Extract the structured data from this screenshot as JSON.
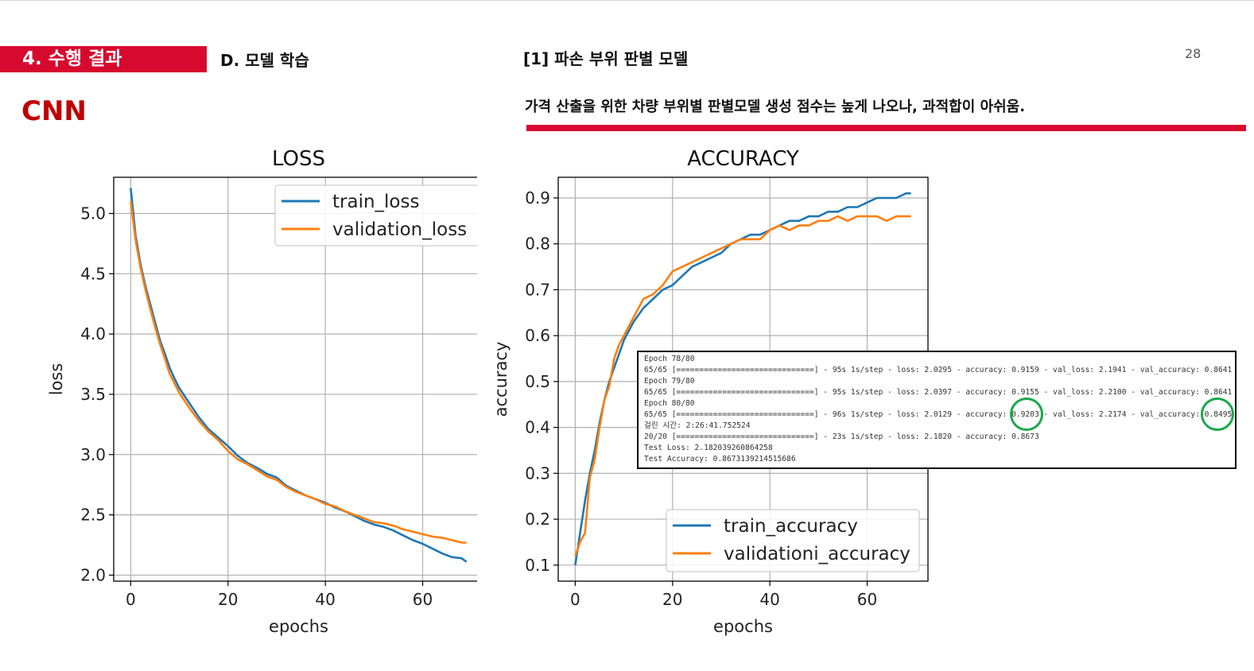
{
  "header": {
    "section": "4. 수행 결과",
    "subsection": "D. 모델 학습",
    "model_title": "[1] 파손 부위 판별 모델",
    "page_number": "28",
    "model_type": "CNN",
    "note": "가격 산출을 위한 차량 부위별 판별모델 생성 점수는 높게 나오나, 과적합이 아쉬움."
  },
  "chart_data": [
    {
      "type": "line",
      "title": "LOSS",
      "xlabel": "epochs",
      "ylabel": "loss",
      "xlim": [
        -3.5,
        72.5
      ],
      "ylim": [
        1.95,
        5.3
      ],
      "xticks": [
        0,
        20,
        40,
        60
      ],
      "yticks": [
        2.0,
        2.5,
        3.0,
        3.5,
        4.0,
        4.5,
        5.0
      ],
      "grid": true,
      "legend_position": "top-right",
      "series": [
        {
          "name": "train_loss",
          "color": "#1f77b4",
          "x": [
            0,
            1,
            2,
            3,
            4,
            5,
            6,
            7,
            8,
            9,
            10,
            12,
            14,
            16,
            18,
            20,
            22,
            24,
            26,
            28,
            30,
            32,
            34,
            36,
            38,
            40,
            42,
            44,
            46,
            48,
            50,
            52,
            54,
            56,
            58,
            60,
            62,
            64,
            66,
            68,
            69
          ],
          "y": [
            5.21,
            4.82,
            4.58,
            4.4,
            4.25,
            4.1,
            3.95,
            3.84,
            3.72,
            3.63,
            3.55,
            3.43,
            3.31,
            3.21,
            3.14,
            3.07,
            2.99,
            2.93,
            2.89,
            2.84,
            2.81,
            2.74,
            2.7,
            2.66,
            2.63,
            2.6,
            2.56,
            2.53,
            2.49,
            2.45,
            2.42,
            2.4,
            2.37,
            2.33,
            2.29,
            2.26,
            2.22,
            2.18,
            2.15,
            2.14,
            2.11
          ]
        },
        {
          "name": "validation_loss",
          "color": "#ff7f0e",
          "x": [
            0,
            1,
            2,
            3,
            4,
            5,
            6,
            7,
            8,
            9,
            10,
            12,
            14,
            16,
            18,
            20,
            22,
            24,
            26,
            28,
            30,
            32,
            34,
            36,
            38,
            40,
            42,
            44,
            46,
            48,
            50,
            52,
            54,
            56,
            58,
            60,
            62,
            64,
            66,
            68,
            69
          ],
          "y": [
            5.1,
            4.78,
            4.55,
            4.37,
            4.21,
            4.06,
            3.92,
            3.8,
            3.67,
            3.59,
            3.51,
            3.39,
            3.28,
            3.19,
            3.12,
            3.03,
            2.96,
            2.92,
            2.87,
            2.82,
            2.79,
            2.73,
            2.69,
            2.66,
            2.63,
            2.59,
            2.57,
            2.53,
            2.5,
            2.47,
            2.44,
            2.43,
            2.41,
            2.38,
            2.36,
            2.34,
            2.32,
            2.31,
            2.29,
            2.27,
            2.27
          ]
        }
      ]
    },
    {
      "type": "line",
      "title": "ACCURACY",
      "xlabel": "epochs",
      "ylabel": "accuracy",
      "xlim": [
        -3.5,
        72.5
      ],
      "ylim": [
        0.065,
        0.945
      ],
      "xticks": [
        0,
        20,
        40,
        60
      ],
      "yticks": [
        0.1,
        0.2,
        0.3,
        0.4,
        0.5,
        0.6,
        0.7,
        0.8,
        0.9
      ],
      "grid": true,
      "legend_position": "bottom-right",
      "series": [
        {
          "name": "train_accuracy",
          "color": "#1f77b4",
          "x": [
            0,
            1,
            2,
            3,
            4,
            5,
            6,
            7,
            8,
            9,
            10,
            12,
            14,
            16,
            18,
            20,
            22,
            24,
            26,
            28,
            30,
            32,
            34,
            36,
            38,
            40,
            42,
            44,
            46,
            48,
            50,
            52,
            54,
            56,
            58,
            60,
            62,
            64,
            66,
            68,
            69
          ],
          "y": [
            0.1,
            0.17,
            0.24,
            0.3,
            0.35,
            0.41,
            0.46,
            0.5,
            0.53,
            0.56,
            0.59,
            0.63,
            0.66,
            0.68,
            0.7,
            0.71,
            0.73,
            0.75,
            0.76,
            0.77,
            0.78,
            0.8,
            0.81,
            0.82,
            0.82,
            0.83,
            0.84,
            0.85,
            0.85,
            0.86,
            0.86,
            0.87,
            0.87,
            0.88,
            0.88,
            0.89,
            0.9,
            0.9,
            0.9,
            0.91,
            0.91
          ]
        },
        {
          "name": "validationi_accuracy",
          "color": "#ff7f0e",
          "x": [
            0,
            1,
            2,
            3,
            4,
            5,
            6,
            7,
            8,
            9,
            10,
            12,
            14,
            16,
            18,
            20,
            22,
            24,
            26,
            28,
            30,
            32,
            34,
            36,
            38,
            40,
            42,
            44,
            46,
            48,
            50,
            52,
            54,
            56,
            58,
            60,
            62,
            64,
            66,
            68,
            69
          ],
          "y": [
            0.12,
            0.15,
            0.17,
            0.29,
            0.33,
            0.4,
            0.46,
            0.49,
            0.55,
            0.58,
            0.6,
            0.64,
            0.68,
            0.69,
            0.71,
            0.74,
            0.75,
            0.76,
            0.77,
            0.78,
            0.79,
            0.8,
            0.81,
            0.81,
            0.81,
            0.83,
            0.84,
            0.83,
            0.84,
            0.84,
            0.85,
            0.85,
            0.86,
            0.85,
            0.86,
            0.86,
            0.86,
            0.85,
            0.86,
            0.86,
            0.86
          ]
        }
      ]
    }
  ],
  "training_log": [
    "Epoch 78/80",
    "65/65 [==============================] - 95s 1s/step - loss: 2.0295 - accuracy: 0.9159 - val_loss: 2.1941 - val_accuracy: 0.8641",
    "Epoch 79/80",
    "65/65 [==============================] - 95s 1s/step - loss: 2.0397 - accuracy: 0.9155 - val_loss: 2.2100 - val_accuracy: 0.8641",
    "Epoch 80/80",
    "65/65 [==============================] - 96s 1s/step - loss: 2.0129 - accuracy: 0.9203 - val_loss: 2.2174 - val_accuracy: 0.8495",
    "걸린 시간: 2:26:41.752524",
    "20/20 [==============================] - 23s 1s/step - loss: 2.1820 - accuracy: 0.8673",
    "Test Loss: 2.182039260864258",
    "Test Accuracy: 0.8673139214515686"
  ],
  "highlight_color": "#1aa84a"
}
